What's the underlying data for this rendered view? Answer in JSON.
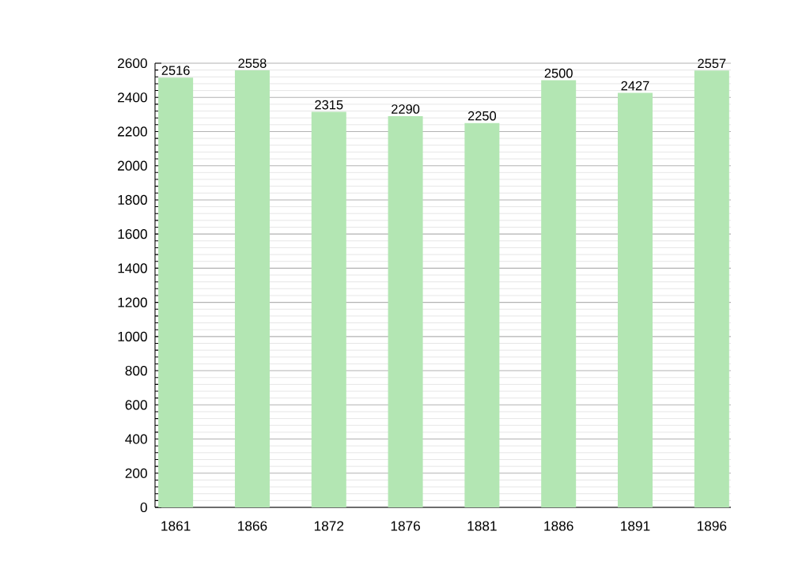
{
  "chart_data": {
    "type": "bar",
    "categories": [
      "1861",
      "1866",
      "1872",
      "1876",
      "1881",
      "1886",
      "1891",
      "1896"
    ],
    "values": [
      2516,
      2558,
      2315,
      2290,
      2250,
      2500,
      2427,
      2557
    ],
    "color": "#b3e6b3",
    "ylim": [
      0,
      2600
    ],
    "yticks": [
      0,
      200,
      400,
      600,
      800,
      1000,
      1200,
      1400,
      1600,
      1800,
      2000,
      2200,
      2400,
      2600
    ],
    "grid": "y",
    "data_labels": true
  }
}
